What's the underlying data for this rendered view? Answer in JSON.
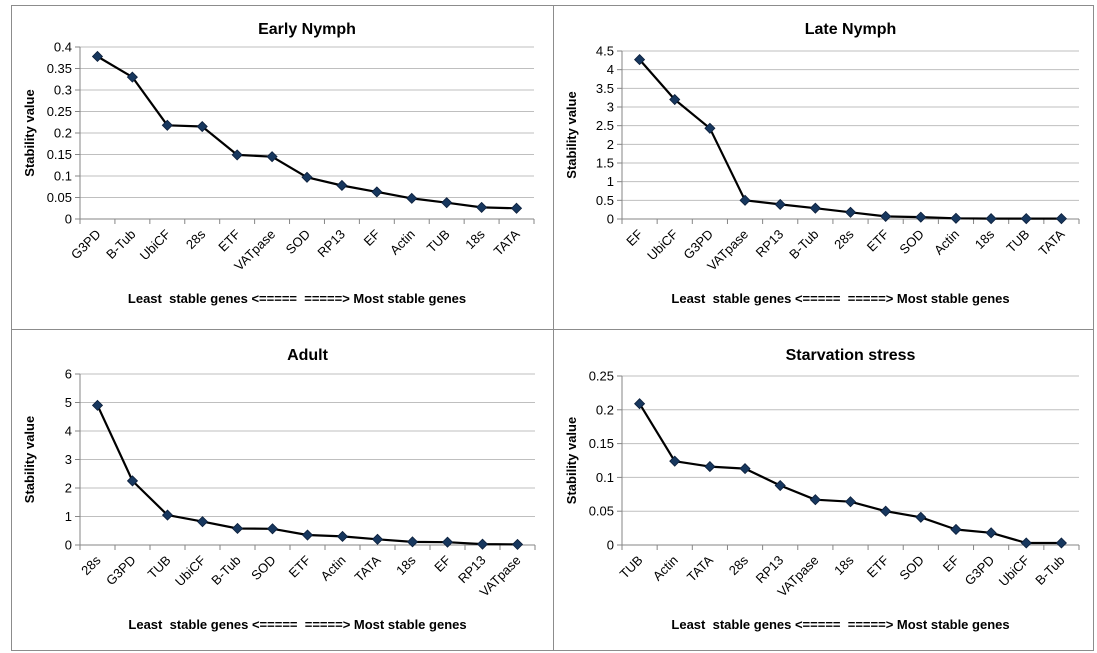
{
  "colors": {
    "line": "#000000",
    "marker": "#17375e",
    "gridline": "#bfbfbf",
    "axis": "#868686",
    "panel_border": "#8c8c8c"
  },
  "marker_icon": "diamond-marker-icon",
  "chart_data": [
    {
      "type": "line",
      "title": "Early Nymph",
      "xlabel": "Least  stable genes <=====  =====> Most stable genes",
      "ylabel": "Stability value",
      "ylim": [
        0,
        0.4
      ],
      "yticks": [
        "0",
        "0.05",
        "0.1",
        "0.15",
        "0.2",
        "0.25",
        "0.3",
        "0.35",
        "0.4"
      ],
      "grid": true,
      "legend": "none",
      "categories": [
        "G3PD",
        "B-Tub",
        "UbiCF",
        "28s",
        "ETF",
        "VATpase",
        "SOD",
        "RP13",
        "EF",
        "Actin",
        "TUB",
        "18s",
        "TATA"
      ],
      "values": [
        0.378,
        0.33,
        0.218,
        0.215,
        0.149,
        0.145,
        0.097,
        0.078,
        0.063,
        0.048,
        0.038,
        0.027,
        0.025
      ]
    },
    {
      "type": "line",
      "title": "Late Nymph",
      "xlabel": "Least  stable genes <=====  =====> Most stable genes",
      "ylabel": "Stability value",
      "ylim": [
        0,
        4.5
      ],
      "yticks": [
        "0",
        "0.5",
        "1",
        "1.5",
        "2",
        "2.5",
        "3",
        "3.5",
        "4",
        "4.5"
      ],
      "grid": true,
      "legend": "none",
      "categories": [
        "EF",
        "UbiCF",
        "G3PD",
        "VATpase",
        "RP13",
        "B-Tub",
        "28s",
        "ETF",
        "SOD",
        "Actin",
        "18s",
        "TUB",
        "TATA"
      ],
      "values": [
        4.27,
        3.2,
        2.43,
        0.5,
        0.39,
        0.29,
        0.18,
        0.07,
        0.05,
        0.02,
        0.01,
        0.01,
        0.01
      ]
    },
    {
      "type": "line",
      "title": "Adult",
      "xlabel": "Least  stable genes <=====  =====> Most stable genes",
      "ylabel": "Stability value",
      "ylim": [
        0,
        6
      ],
      "yticks": [
        "0",
        "1",
        "2",
        "3",
        "4",
        "5",
        "6"
      ],
      "grid": true,
      "legend": "none",
      "categories": [
        "28s",
        "G3PD",
        "TUB",
        "UbiCF",
        "B-Tub",
        "SOD",
        "ETF",
        "Actin",
        "TATA",
        "18s",
        "EF",
        "RP13",
        "VATpase"
      ],
      "values": [
        4.9,
        2.25,
        1.05,
        0.82,
        0.58,
        0.57,
        0.35,
        0.3,
        0.2,
        0.11,
        0.1,
        0.03,
        0.02
      ]
    },
    {
      "type": "line",
      "title": "Starvation stress",
      "xlabel": "Least  stable genes <=====  =====> Most stable genes",
      "ylabel": "Stability value",
      "ylim": [
        0,
        0.25
      ],
      "yticks": [
        "0",
        "0.05",
        "0.1",
        "0.15",
        "0.2",
        "0.25"
      ],
      "grid": true,
      "legend": "none",
      "categories": [
        "TUB",
        "Actin",
        "TATA",
        "28s",
        "RP13",
        "VATpase",
        "18s",
        "ETF",
        "SOD",
        "EF",
        "G3PD",
        "UbiCF",
        "B-Tub"
      ],
      "values": [
        0.209,
        0.124,
        0.116,
        0.113,
        0.088,
        0.067,
        0.064,
        0.05,
        0.041,
        0.023,
        0.018,
        0.003,
        0.003
      ]
    }
  ]
}
